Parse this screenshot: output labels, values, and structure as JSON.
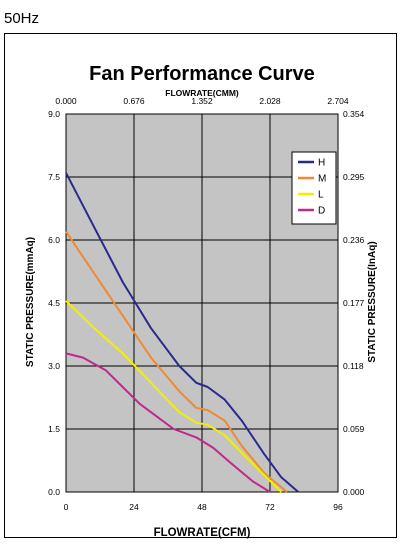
{
  "header": {
    "frequency": "50Hz"
  },
  "chart_data": {
    "type": "line",
    "title": "Fan Performance Curve",
    "xlabel": "FLOWRATE(CFM)",
    "x2label": "FLOWRATE(CMM)",
    "ylabel": "STATIC PRESSURE(mmAq)",
    "y2label": "STATIC PRESSURE(InAq)",
    "xlim": [
      0,
      96
    ],
    "ylim": [
      0,
      9
    ],
    "x_ticks": [
      "0",
      "24",
      "48",
      "72",
      "96"
    ],
    "x2_ticks": [
      "0.000",
      "0.676",
      "1.352",
      "2.028",
      "2.704"
    ],
    "y_ticks": [
      "0.0",
      "1.5",
      "3.0",
      "4.5",
      "6.0",
      "7.5",
      "9.0"
    ],
    "y2_ticks": [
      "0.000",
      "0.059",
      "0.118",
      "0.177",
      "0.236",
      "0.295",
      "0.354"
    ],
    "grid": true,
    "legend_position": "top-right",
    "series": [
      {
        "name": "H",
        "color": "#2a2a8e",
        "x": [
          0,
          10,
          20,
          30,
          40,
          46,
          50,
          56,
          62,
          70,
          76,
          82
        ],
        "y": [
          7.6,
          6.3,
          5.0,
          3.9,
          3.0,
          2.6,
          2.5,
          2.2,
          1.7,
          0.9,
          0.35,
          0
        ]
      },
      {
        "name": "M",
        "color": "#f08a30",
        "x": [
          0,
          10,
          20,
          30,
          40,
          46,
          50,
          56,
          62,
          70,
          78
        ],
        "y": [
          6.2,
          5.2,
          4.2,
          3.2,
          2.4,
          2.0,
          1.95,
          1.7,
          1.1,
          0.45,
          0
        ]
      },
      {
        "name": "L",
        "color": "#f2f000",
        "x": [
          0,
          10,
          20,
          30,
          40,
          46,
          50,
          56,
          64,
          70,
          76
        ],
        "y": [
          4.55,
          3.9,
          3.3,
          2.6,
          1.9,
          1.65,
          1.6,
          1.35,
          0.8,
          0.4,
          0
        ]
      },
      {
        "name": "D",
        "color": "#c0288a",
        "x": [
          0,
          6,
          14,
          20,
          26,
          32,
          38,
          46,
          52,
          58,
          66,
          72
        ],
        "y": [
          3.3,
          3.2,
          2.9,
          2.5,
          2.1,
          1.8,
          1.5,
          1.3,
          1.05,
          0.7,
          0.25,
          0
        ]
      }
    ]
  }
}
